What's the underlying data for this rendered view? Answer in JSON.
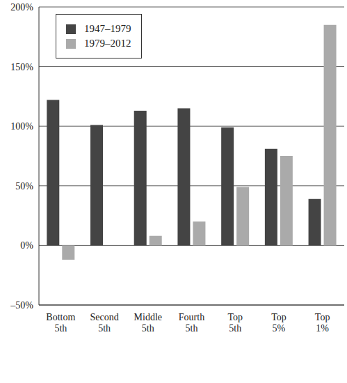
{
  "chart_data": {
    "type": "bar",
    "categories": [
      "Bottom 5th",
      "Second 5th",
      "Middle 5th",
      "Fourth 5th",
      "Top 5th",
      "Top 5%",
      "Top 1%"
    ],
    "series": [
      {
        "name": "1947–1979",
        "color": "#444444",
        "values": [
          122,
          101,
          113,
          115,
          99,
          81,
          39
        ]
      },
      {
        "name": "1979–2012",
        "color": "#aaaaaa",
        "values": [
          -12,
          0,
          8,
          20,
          49,
          75,
          185
        ]
      }
    ],
    "ylim": [
      -50,
      200
    ],
    "yticks": [
      {
        "value": -50,
        "label": "–50%"
      },
      {
        "value": 0,
        "label": "0%"
      },
      {
        "value": 50,
        "label": "50%"
      },
      {
        "value": 100,
        "label": "100%"
      },
      {
        "value": 150,
        "label": "150%"
      },
      {
        "value": 200,
        "label": "200%"
      }
    ],
    "grid": true,
    "legend": "upper left"
  }
}
